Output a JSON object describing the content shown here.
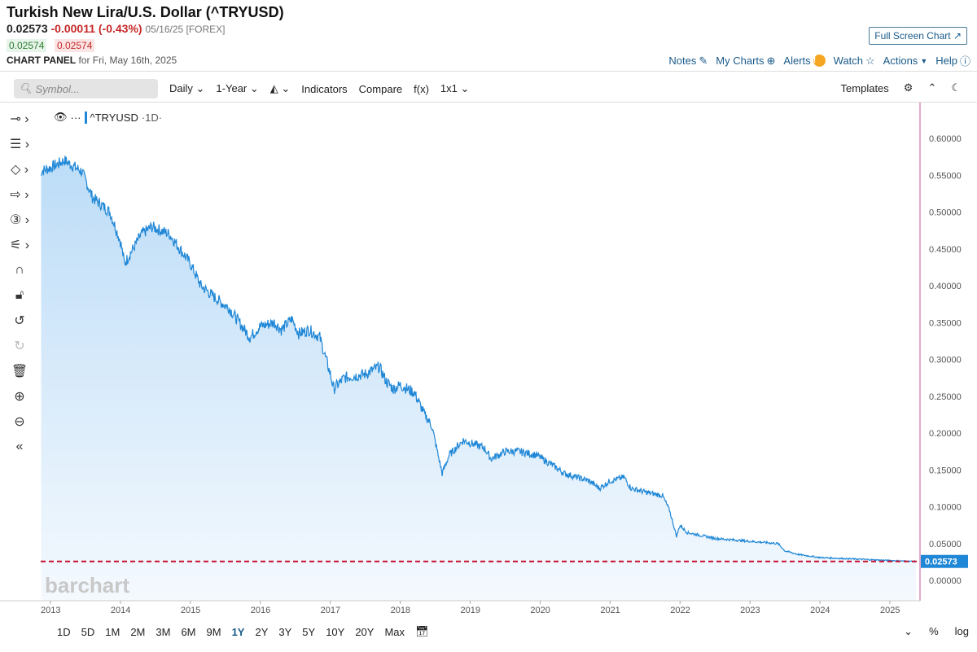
{
  "header": {
    "title": "Turkish New Lira/U.S. Dollar (^TRYUSD)",
    "last": "0.02573",
    "change": "-0.00011 (-0.43%)",
    "meta": "05/16/25 [FOREX]",
    "bid": "0.02574",
    "ask": "0.02574",
    "panel_label": "CHART PANEL",
    "panel_date": "for Fri, May 16th, 2025",
    "fullscreen": "Full Screen Chart ↗"
  },
  "links": {
    "notes": "Notes",
    "mycharts": "My Charts",
    "alerts": "Alerts",
    "watch": "Watch",
    "actions": "Actions",
    "help": "Help"
  },
  "toolbar": {
    "search_placeholder": "Symbol...",
    "interval": "Daily",
    "range": "1-Year",
    "indicators": "Indicators",
    "compare": "Compare",
    "fx": "f(x)",
    "layout": "1x1",
    "templates": "Templates"
  },
  "legend": {
    "symbol": "^TRYUSD",
    "interval": "·1D·"
  },
  "bottom": {
    "ranges": [
      "1D",
      "5D",
      "1M",
      "2M",
      "3M",
      "6M",
      "9M",
      "1Y",
      "2Y",
      "3Y",
      "5Y",
      "10Y",
      "20Y",
      "Max"
    ],
    "active": "1Y",
    "pct": "%",
    "log": "log"
  },
  "colors": {
    "line": "#1f87d6",
    "last": "#c8102e",
    "accent": "#1a5b8a"
  },
  "chart_data": {
    "type": "area",
    "title": "^TRYUSD",
    "last_value": 0.02573,
    "last_label": "0.02573",
    "watermark": "barchart",
    "ylim": [
      0,
      0.6
    ],
    "yticks": [
      "0.60000",
      "0.55000",
      "0.50000",
      "0.45000",
      "0.40000",
      "0.35000",
      "0.30000",
      "0.25000",
      "0.20000",
      "0.15000",
      "0.10000",
      "0.05000",
      "0.00000"
    ],
    "xticks": [
      "2013",
      "2014",
      "2015",
      "2016",
      "2017",
      "2018",
      "2019",
      "2020",
      "2021",
      "2022",
      "2023",
      "2024",
      "2025"
    ],
    "x": [
      2012.85,
      2013.0,
      2013.2,
      2013.45,
      2013.6,
      2013.85,
      2014.0,
      2014.06,
      2014.3,
      2014.45,
      2014.7,
      2014.85,
      2015.0,
      2015.15,
      2015.4,
      2015.55,
      2015.7,
      2015.85,
      2016.0,
      2016.2,
      2016.3,
      2016.45,
      2016.55,
      2016.7,
      2016.85,
      2017.0,
      2017.05,
      2017.2,
      2017.5,
      2017.7,
      2017.8,
      2017.9,
      2018.0,
      2018.2,
      2018.35,
      2018.45,
      2018.6,
      2018.7,
      2018.9,
      2019.2,
      2019.3,
      2019.5,
      2019.7,
      2019.95,
      2020.2,
      2020.35,
      2020.7,
      2020.85,
      2021.0,
      2021.2,
      2021.3,
      2021.5,
      2021.75,
      2021.85,
      2021.95,
      2022.0,
      2022.1,
      2022.5,
      2023.0,
      2023.4,
      2023.5,
      2023.7,
      2024.0,
      2024.5,
      2025.0,
      2025.37
    ],
    "y": [
      0.555,
      0.56,
      0.57,
      0.555,
      0.52,
      0.5,
      0.46,
      0.43,
      0.47,
      0.48,
      0.47,
      0.45,
      0.43,
      0.4,
      0.38,
      0.37,
      0.35,
      0.33,
      0.345,
      0.35,
      0.34,
      0.355,
      0.335,
      0.34,
      0.33,
      0.28,
      0.26,
      0.275,
      0.28,
      0.29,
      0.27,
      0.26,
      0.265,
      0.255,
      0.225,
      0.21,
      0.145,
      0.17,
      0.19,
      0.18,
      0.165,
      0.175,
      0.175,
      0.17,
      0.155,
      0.145,
      0.135,
      0.125,
      0.135,
      0.14,
      0.125,
      0.12,
      0.115,
      0.095,
      0.06,
      0.075,
      0.065,
      0.057,
      0.053,
      0.05,
      0.04,
      0.035,
      0.031,
      0.029,
      0.027,
      0.02573
    ]
  }
}
